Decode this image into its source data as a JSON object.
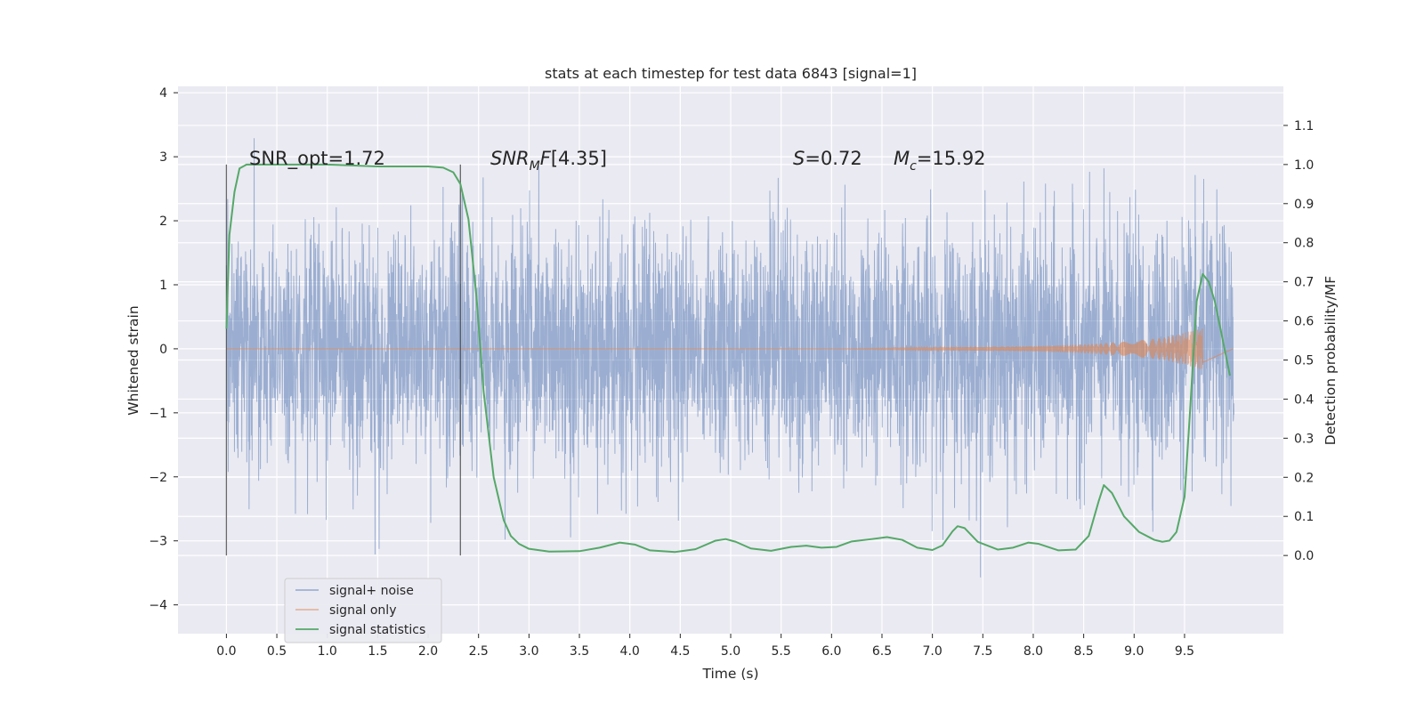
{
  "chart_data": {
    "type": "line",
    "title": "stats at each timestep for test data 6843 [signal=1]",
    "xlabel": "Time (s)",
    "ylabel": "Whitened strain",
    "y2label": "Detection probability/MF",
    "xlim": [
      -0.48,
      10.48
    ],
    "ylim": [
      -4.45,
      4.1
    ],
    "y2lim": [
      -0.2,
      1.2
    ],
    "xticks": [
      "0.0",
      "0.5",
      "1.0",
      "1.5",
      "2.0",
      "2.5",
      "3.0",
      "3.5",
      "4.0",
      "4.5",
      "5.0",
      "5.5",
      "6.0",
      "6.5",
      "7.0",
      "7.5",
      "8.0",
      "8.5",
      "9.0",
      "9.5"
    ],
    "yticks": [
      "4",
      "3",
      "2",
      "1",
      "0",
      "−1",
      "−2",
      "−3",
      "−4"
    ],
    "y2ticks": [
      "1.1",
      "1.0",
      "0.9",
      "0.8",
      "0.7",
      "0.6",
      "0.5",
      "0.4",
      "0.3",
      "0.2",
      "0.1",
      "0.0"
    ],
    "grid": true,
    "legend_position": "lower-left",
    "annotations": {
      "snr_opt": "SNR_opt=1.72",
      "snr_mf": "[4.35]",
      "s_val": "=0.72",
      "mc_val": "=15.92"
    },
    "vlines": [
      0.0,
      2.32
    ],
    "series": [
      {
        "name": "signal+ noise",
        "color": "#4c72b0",
        "note_range": "noise band between about -2.3 and 2.3 with spikes to about -4.0 and 3.8",
        "x_start": 0.0,
        "x_end": 9.99
      },
      {
        "name": "signal only",
        "color": "#dd8452",
        "x": [
          0.0,
          6.0,
          7.0,
          8.0,
          8.5,
          9.0,
          9.3,
          9.5,
          9.6,
          9.68
        ],
        "amplitude": [
          0.0,
          0.0,
          0.02,
          0.04,
          0.07,
          0.12,
          0.18,
          0.25,
          0.3,
          0.33
        ]
      },
      {
        "name": "signal statistics",
        "color": "#55a868",
        "x": [
          0.0,
          0.03,
          0.08,
          0.13,
          0.2,
          0.3,
          0.5,
          1.0,
          1.5,
          2.0,
          2.15,
          2.25,
          2.32,
          2.4,
          2.48,
          2.55,
          2.65,
          2.75,
          2.82,
          2.9,
          3.0,
          3.2,
          3.5,
          3.7,
          3.9,
          4.05,
          4.2,
          4.45,
          4.65,
          4.85,
          4.95,
          5.05,
          5.2,
          5.4,
          5.6,
          5.75,
          5.9,
          6.05,
          6.2,
          6.4,
          6.55,
          6.7,
          6.85,
          7.0,
          7.1,
          7.2,
          7.25,
          7.32,
          7.45,
          7.65,
          7.8,
          7.95,
          8.05,
          8.25,
          8.42,
          8.55,
          8.65,
          8.7,
          8.78,
          8.9,
          9.05,
          9.2,
          9.28,
          9.35,
          9.42,
          9.5,
          9.55,
          9.62,
          9.68,
          9.74,
          9.8,
          9.88,
          9.95
        ],
        "values": [
          0.58,
          0.82,
          0.93,
          0.99,
          1.0,
          1.0,
          1.0,
          1.0,
          0.995,
          0.995,
          0.992,
          0.98,
          0.95,
          0.86,
          0.66,
          0.42,
          0.2,
          0.09,
          0.05,
          0.03,
          0.017,
          0.01,
          0.011,
          0.02,
          0.033,
          0.028,
          0.013,
          0.009,
          0.016,
          0.038,
          0.042,
          0.035,
          0.018,
          0.012,
          0.022,
          0.025,
          0.02,
          0.022,
          0.036,
          0.042,
          0.047,
          0.04,
          0.02,
          0.014,
          0.026,
          0.062,
          0.075,
          0.07,
          0.035,
          0.015,
          0.02,
          0.033,
          0.03,
          0.013,
          0.015,
          0.05,
          0.14,
          0.18,
          0.16,
          0.1,
          0.06,
          0.04,
          0.035,
          0.038,
          0.06,
          0.15,
          0.35,
          0.65,
          0.72,
          0.7,
          0.65,
          0.55,
          0.46
        ]
      }
    ]
  }
}
